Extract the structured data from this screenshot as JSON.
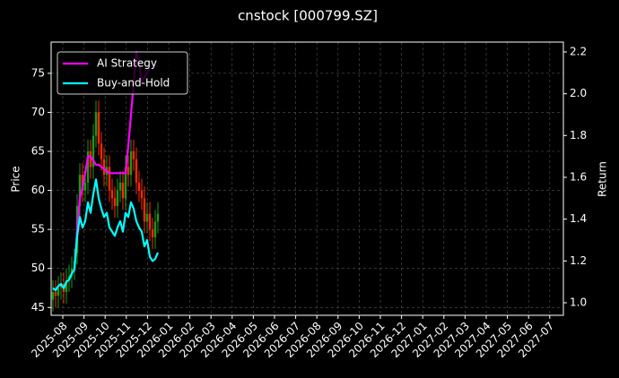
{
  "chart_data": {
    "type": "candlestick",
    "title": "cnstock [000799.SZ]",
    "ylabel": "Price",
    "y2label": "Return",
    "ylim": [
      44,
      79
    ],
    "yticks": [
      45,
      50,
      55,
      60,
      65,
      70,
      75
    ],
    "y2lim": [
      0.94,
      2.247
    ],
    "y2ticks": [
      {
        "value": 1,
        "label": "1.0"
      },
      1.2,
      1.4,
      1.6,
      1.8,
      {
        "value": 2,
        "label": "2.0"
      },
      2.2
    ],
    "xticks": [
      "2025-08",
      "2025-09",
      "2025-10",
      "2025-11",
      "2025-12",
      "2026-01",
      "2026-02",
      "2026-03",
      "2026-04",
      "2026-05",
      "2026-06",
      "2026-07",
      "2026-08",
      "2026-09",
      "2026-10",
      "2026-11",
      "2026-12",
      "2027-01",
      "2027-02",
      "2027-03",
      "2027-04",
      "2027-05",
      "2027-06",
      "2027-07"
    ],
    "grid": true,
    "legend": "upper left",
    "up_color": "#1a9a1a",
    "down_color": "#ff2a00",
    "open": [
      46,
      47,
      46.5,
      47.5,
      48,
      47,
      48.5,
      49,
      50,
      52,
      58,
      62,
      60,
      61,
      65,
      63,
      67,
      70,
      66,
      64,
      62,
      63,
      60,
      59,
      58,
      60,
      61,
      59,
      63,
      62,
      65,
      64,
      61,
      60,
      59,
      56,
      57,
      55,
      54,
      56
    ],
    "high": [
      48.5,
      48.5,
      49,
      49.5,
      49.5,
      50,
      50.5,
      51.5,
      52.5,
      59.5,
      63.5,
      63.5,
      62.5,
      66.5,
      66.5,
      68.5,
      71.5,
      71.5,
      67.5,
      65.5,
      64.5,
      64.5,
      61.5,
      60.5,
      61.5,
      62.5,
      62.5,
      64.5,
      64.5,
      66.5,
      66.5,
      65.5,
      62.5,
      61.5,
      60.5,
      58.5,
      58.5,
      56.5,
      57.5,
      58.5
    ],
    "low": [
      44.5,
      45,
      45,
      46,
      45.5,
      45.5,
      47,
      47.5,
      48.5,
      50.5,
      56.5,
      58.5,
      58.5,
      59.5,
      61.5,
      61.5,
      65.5,
      64.5,
      62.5,
      60.5,
      60.5,
      58.5,
      57.5,
      56.5,
      56.5,
      58.5,
      57.5,
      57.5,
      60.5,
      60.5,
      62.5,
      59.5,
      58.5,
      57.5,
      54.5,
      54.5,
      53.5,
      52.5,
      52.5,
      54.5
    ],
    "close": [
      47,
      46.5,
      47.5,
      48,
      47,
      48.5,
      49,
      50,
      51,
      58,
      62,
      60,
      61,
      65,
      63,
      67,
      70,
      66,
      64,
      62,
      63,
      60,
      59,
      58,
      60,
      61,
      59,
      63,
      62,
      65,
      64,
      61,
      60,
      59,
      56,
      57,
      55,
      54,
      56,
      57
    ],
    "series": [
      {
        "name": "AI Strategy",
        "color": "#ff00ff",
        "axis": "y2",
        "values": [
          1.07,
          1.06,
          1.08,
          1.09,
          1.07,
          1.1,
          1.11,
          1.14,
          1.16,
          1.35,
          1.5,
          1.55,
          1.62,
          1.7,
          1.7,
          1.68,
          1.66,
          1.66,
          1.65,
          1.64,
          1.63,
          1.62,
          1.62,
          1.62,
          1.62,
          1.62,
          1.62,
          1.62,
          1.75,
          1.9,
          2.05,
          2.2,
          2.15,
          2.05,
          2.08,
          2.1,
          2.12,
          null,
          null,
          null
        ]
      },
      {
        "name": "Buy-and-Hold",
        "color": "#00ffff",
        "axis": "y2",
        "values": [
          1.07,
          1.06,
          1.08,
          1.09,
          1.07,
          1.1,
          1.11,
          1.14,
          1.16,
          1.32,
          1.41,
          1.36,
          1.39,
          1.48,
          1.43,
          1.52,
          1.59,
          1.5,
          1.45,
          1.41,
          1.43,
          1.36,
          1.34,
          1.32,
          1.36,
          1.39,
          1.34,
          1.43,
          1.41,
          1.48,
          1.45,
          1.39,
          1.36,
          1.34,
          1.27,
          1.3,
          1.22,
          1.2,
          1.21,
          1.24
        ]
      }
    ]
  }
}
